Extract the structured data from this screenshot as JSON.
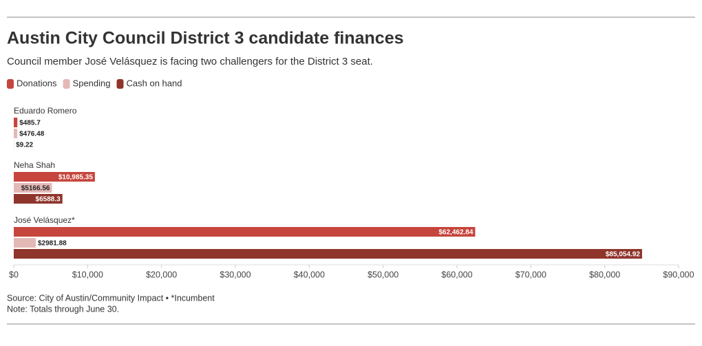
{
  "chart_data": {
    "type": "hbar",
    "title": "Austin City Council District 3 candidate finances",
    "subtitle": "Council member José Velásquez is facing two challengers for the District 3 seat.",
    "categories": [
      "Eduardo Romero",
      "Neha Shah",
      "José Velásquez*"
    ],
    "series": [
      {
        "name": "Donations",
        "color": "#c6453c",
        "values": [
          485.7,
          10985.35,
          62462.84
        ],
        "value_labels": [
          "$485.7",
          "$10,985.35",
          "$62,462.84"
        ]
      },
      {
        "name": "Spending",
        "color": "#e3b9b6",
        "values": [
          476.48,
          5166.56,
          2981.88
        ],
        "value_labels": [
          "$476.48",
          "$5166.56",
          "$2981.88"
        ]
      },
      {
        "name": "Cash on hand",
        "color": "#8f352b",
        "values": [
          9.22,
          6588.3,
          85054.92
        ],
        "value_labels": [
          "$9.22",
          "$6588.3",
          "$85,054.92"
        ]
      }
    ],
    "xlim": [
      0,
      90000
    ],
    "xticks": [
      {
        "value": 0,
        "label": "$0"
      },
      {
        "value": 10000,
        "label": "$10,000"
      },
      {
        "value": 20000,
        "label": "$20,000"
      },
      {
        "value": 30000,
        "label": "$30,000"
      },
      {
        "value": 40000,
        "label": "$40,000"
      },
      {
        "value": 50000,
        "label": "$50,000"
      },
      {
        "value": 60000,
        "label": "$60,000"
      },
      {
        "value": 70000,
        "label": "$70,000"
      },
      {
        "value": 80000,
        "label": "$80,000"
      },
      {
        "value": 90000,
        "label": "$90,000"
      }
    ],
    "source": "Source: City of Austin/Community Impact • *Incumbent",
    "note": "Note: Totals through June 30."
  }
}
